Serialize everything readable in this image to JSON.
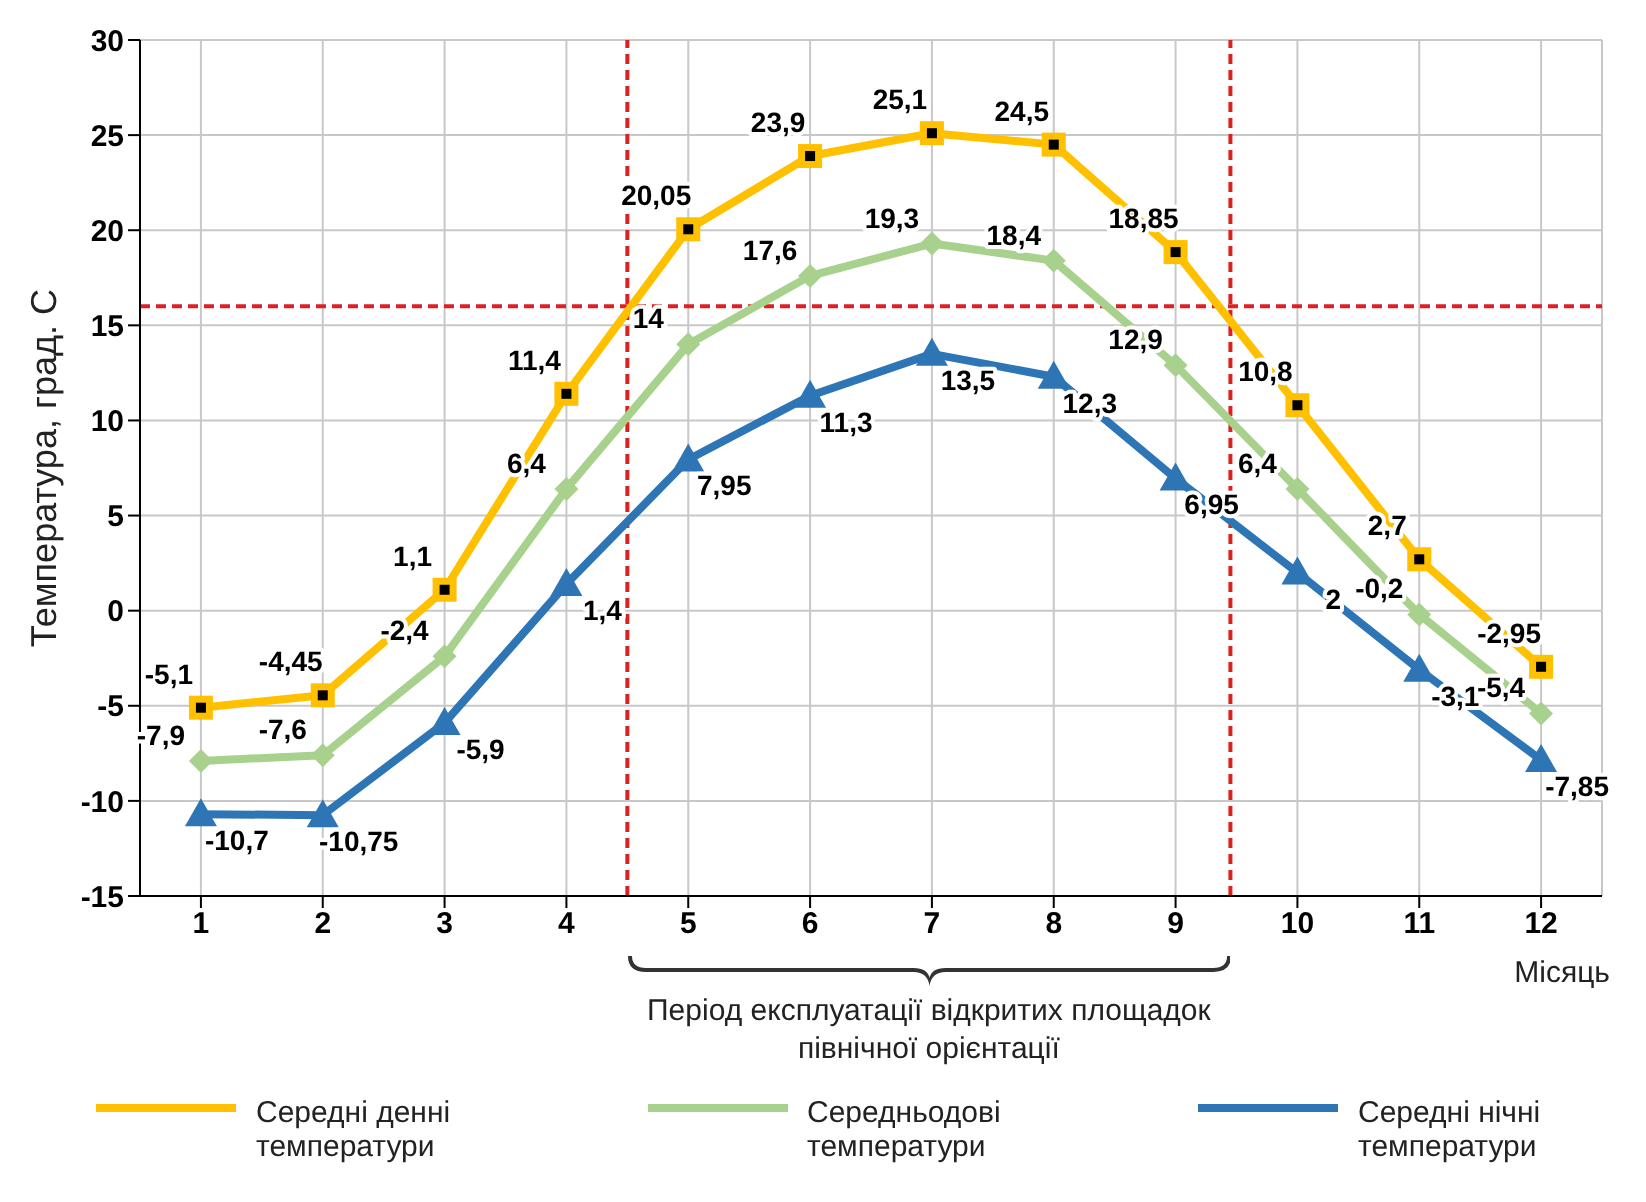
{
  "chart_data": {
    "type": "line",
    "x": [
      1,
      2,
      3,
      4,
      5,
      6,
      7,
      8,
      9,
      10,
      11,
      12
    ],
    "xlim": [
      0.5,
      12.5
    ],
    "xticks": [
      1,
      2,
      3,
      4,
      5,
      6,
      7,
      8,
      9,
      10,
      11,
      12
    ],
    "ylim": [
      -15,
      30
    ],
    "yticks": [
      -15,
      -10,
      -5,
      0,
      5,
      10,
      15,
      20,
      25,
      30
    ],
    "ylabel": "Температура, град.  С",
    "xlabel": "Місяць",
    "grid": true,
    "legend": "bottom",
    "series": [
      {
        "name": "Середні денні температури",
        "color": "#ffc000",
        "marker": "square",
        "values": [
          -5.1,
          -4.45,
          1.1,
          11.4,
          20.05,
          23.9,
          25.1,
          24.5,
          18.85,
          10.8,
          2.7,
          -2.95
        ],
        "value_labels": [
          "-5,1",
          "-4,45",
          "1,1",
          "11,4",
          "20,05",
          "23,9",
          "25,1",
          "24,5",
          "18,85",
          "10,8",
          "2,7",
          "-2,95"
        ]
      },
      {
        "name": "Середньодові температури",
        "color": "#a9d18e",
        "marker": "diamond",
        "values": [
          -7.9,
          -7.6,
          -2.4,
          6.4,
          14,
          17.6,
          19.3,
          18.4,
          12.9,
          6.4,
          -0.2,
          -5.4
        ],
        "value_labels": [
          "-7,9",
          "-7,6",
          "-2,4",
          "6,4",
          "14",
          "17,6",
          "19,3",
          "18,4",
          "12,9",
          "6,4",
          "-0,2",
          "-5,4"
        ]
      },
      {
        "name": "Середні нічні температури",
        "color": "#2e75b6",
        "marker": "triangle",
        "values": [
          -10.7,
          -10.75,
          -5.9,
          1.4,
          7.95,
          11.3,
          13.5,
          12.3,
          6.95,
          2,
          -3.1,
          -7.85
        ],
        "value_labels": [
          "-10,7",
          "-10,75",
          "-5,9",
          "1,4",
          "7,95",
          "11,3",
          "13,5",
          "12,3",
          "6,95",
          "2",
          "-3,1",
          "-7,85"
        ]
      }
    ],
    "ref_lines": [
      {
        "axis": "y",
        "value": 16,
        "color": "#e02020",
        "line_style": "dashed"
      },
      {
        "axis": "x",
        "value": 4.5,
        "color": "#e02020",
        "line_style": "dashed"
      },
      {
        "axis": "x",
        "value": 9.45,
        "color": "#e02020",
        "line_style": "dashed"
      }
    ],
    "annotations": [
      "Період експлуатації відкритих площадок північної орієнтації"
    ]
  }
}
